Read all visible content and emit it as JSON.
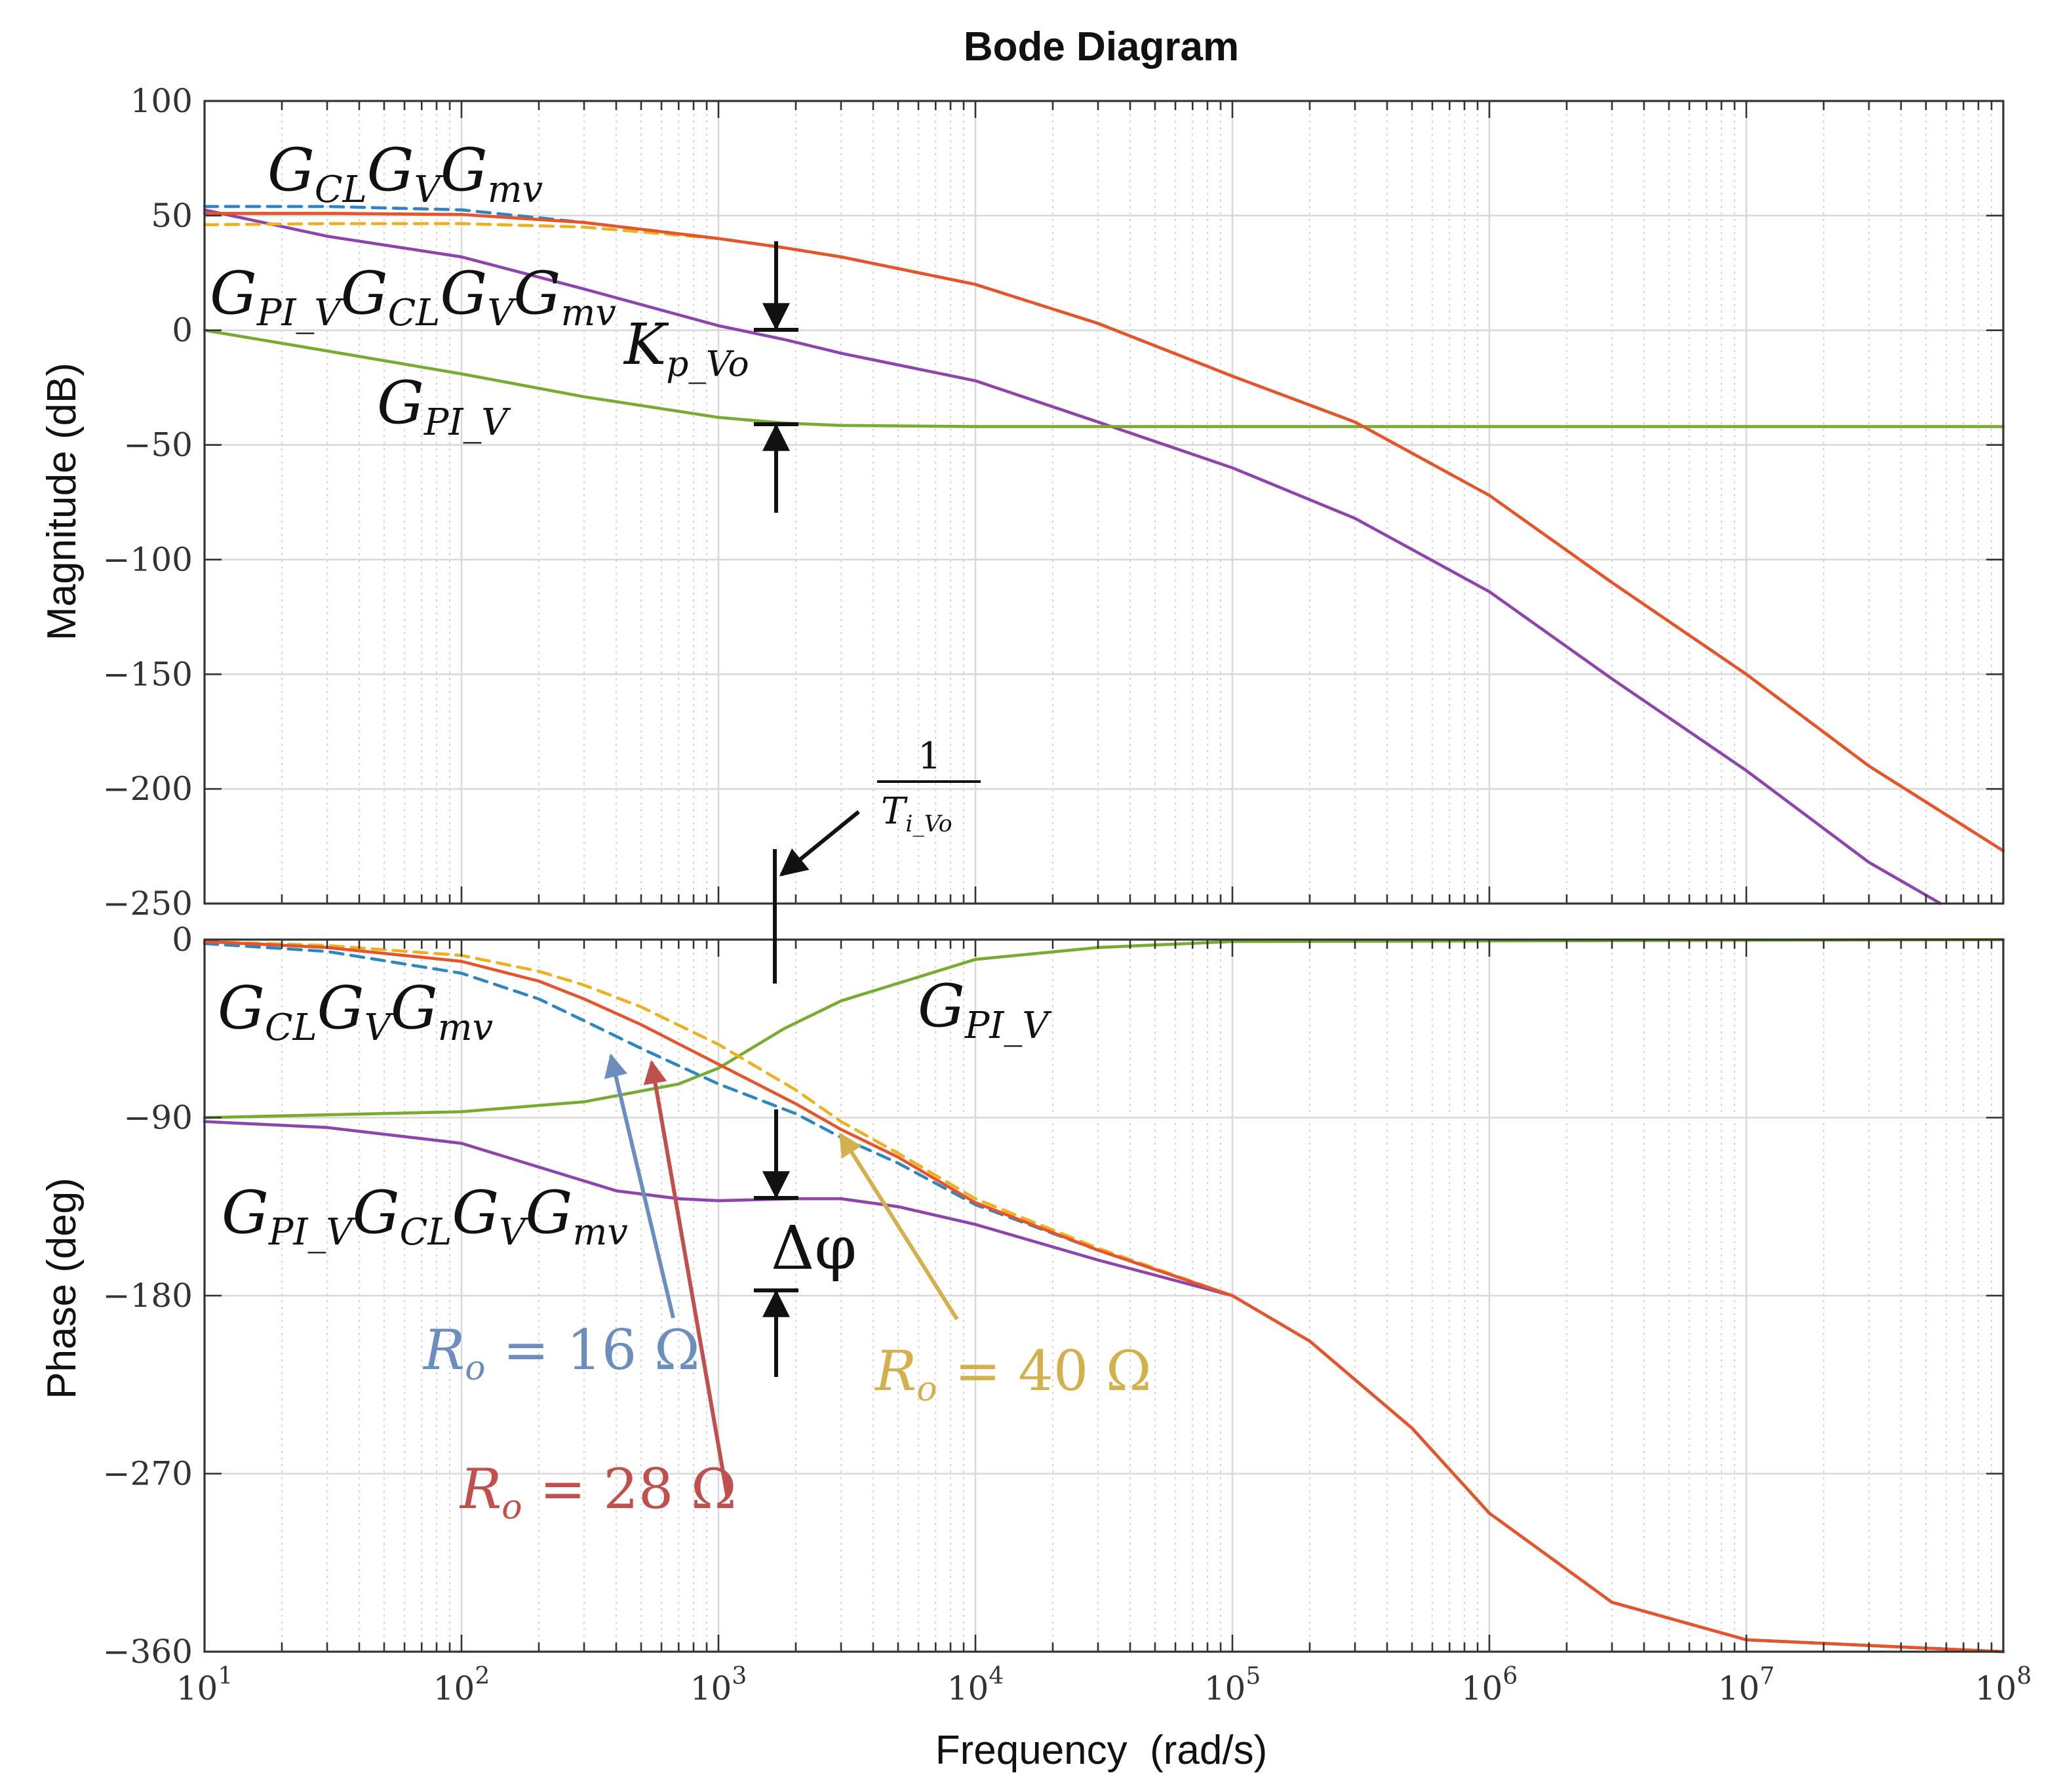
{
  "chart_data": {
    "type": "line",
    "title": "Bode Diagram",
    "xlabel": "Frequency  (rad/s)",
    "x_scale": "log",
    "x_ticks": [
      {
        "value": 10,
        "base": "10",
        "exp": "1"
      },
      {
        "value": 100,
        "base": "10",
        "exp": "2"
      },
      {
        "value": 1000,
        "base": "10",
        "exp": "3"
      },
      {
        "value": 10000,
        "base": "10",
        "exp": "4"
      },
      {
        "value": 100000,
        "base": "10",
        "exp": "5"
      },
      {
        "value": 1000000,
        "base": "10",
        "exp": "6"
      },
      {
        "value": 10000000,
        "base": "10",
        "exp": "7"
      },
      {
        "value": 100000000,
        "base": "10",
        "exp": "8"
      }
    ],
    "xlim": [
      10,
      100000000
    ],
    "colors": {
      "ro16": "#2E86C1",
      "ro28": "#E5542A",
      "ro40": "#EDB120",
      "gpi": "#77AC30",
      "loop": "#8E44AD"
    },
    "annotation_colors": {
      "ro16": "#6C8EBF",
      "ro28": "#C0504D",
      "ro40": "#D4B04C"
    },
    "magnitude": {
      "ylabel": "Magnitude (dB)",
      "ylim": [
        -250,
        100
      ],
      "yticks": [
        {
          "value": 100,
          "label": "100"
        },
        {
          "value": 50,
          "label": "50"
        },
        {
          "value": 0,
          "label": "0"
        },
        {
          "value": -50,
          "label": "−50"
        },
        {
          "value": -100,
          "label": "−100"
        },
        {
          "value": -150,
          "label": "−150"
        },
        {
          "value": -200,
          "label": "−200"
        },
        {
          "value": -250,
          "label": "−250"
        }
      ],
      "series": [
        {
          "name": "G_CL G_V G_mv (Ro = 16 Ω)",
          "color_key": "ro16",
          "dash": true,
          "points": [
            [
              10,
              54
            ],
            [
              30,
              54
            ],
            [
              100,
              52.5
            ],
            [
              300,
              47
            ],
            [
              1000,
              40
            ],
            [
              1800,
              36
            ],
            [
              3000,
              32
            ],
            [
              10000,
              20
            ],
            [
              30000,
              3
            ],
            [
              100000,
              -20
            ],
            [
              300000,
              -40
            ],
            [
              1000000,
              -72
            ],
            [
              3000000,
              -110
            ],
            [
              10000000,
              -150
            ],
            [
              30000000,
              -190
            ],
            [
              100000000,
              -227
            ]
          ]
        },
        {
          "name": "G_CL G_V G_mv (Ro = 28 Ω)",
          "color_key": "ro28",
          "dash": false,
          "points": [
            [
              10,
              51
            ],
            [
              30,
              51
            ],
            [
              100,
              50.5
            ],
            [
              300,
              47
            ],
            [
              1000,
              40
            ],
            [
              1800,
              36
            ],
            [
              3000,
              32
            ],
            [
              10000,
              20
            ],
            [
              30000,
              3
            ],
            [
              100000,
              -20
            ],
            [
              300000,
              -40
            ],
            [
              1000000,
              -72
            ],
            [
              3000000,
              -110
            ],
            [
              10000000,
              -150
            ],
            [
              30000000,
              -190
            ],
            [
              100000000,
              -227
            ]
          ]
        },
        {
          "name": "G_CL G_V G_mv (Ro = 40 Ω)",
          "color_key": "ro40",
          "dash": true,
          "points": [
            [
              10,
              46
            ],
            [
              30,
              46.5
            ],
            [
              100,
              46.5
            ],
            [
              300,
              45
            ],
            [
              1000,
              40
            ],
            [
              1800,
              36
            ],
            [
              3000,
              32
            ],
            [
              10000,
              20
            ],
            [
              30000,
              3
            ],
            [
              100000,
              -20
            ],
            [
              300000,
              -40
            ],
            [
              1000000,
              -72
            ],
            [
              3000000,
              -110
            ],
            [
              10000000,
              -150
            ],
            [
              30000000,
              -190
            ],
            [
              100000000,
              -227
            ]
          ]
        },
        {
          "name": "G_PI_V",
          "color_key": "gpi",
          "dash": false,
          "points": [
            [
              10,
              0
            ],
            [
              30,
              -9
            ],
            [
              100,
              -19
            ],
            [
              300,
              -29
            ],
            [
              1000,
              -38
            ],
            [
              1800,
              -40.5
            ],
            [
              3000,
              -41.5
            ],
            [
              10000,
              -42
            ],
            [
              100000000,
              -42
            ]
          ]
        },
        {
          "name": "G_PI_V G_CL G_V G_mv",
          "color_key": "loop",
          "dash": false,
          "points": [
            [
              10,
              52.5
            ],
            [
              30,
              41
            ],
            [
              100,
              32
            ],
            [
              300,
              18
            ],
            [
              1000,
              2
            ],
            [
              1800,
              -4
            ],
            [
              3000,
              -10
            ],
            [
              10000,
              -22
            ],
            [
              30000,
              -40
            ],
            [
              100000,
              -60
            ],
            [
              300000,
              -82
            ],
            [
              1000000,
              -114
            ],
            [
              3000000,
              -152
            ],
            [
              10000000,
              -192
            ],
            [
              30000000,
              -232
            ],
            [
              57000000,
              -250
            ]
          ]
        }
      ]
    },
    "phase": {
      "ylabel": "Phase (deg)",
      "ylim": [
        -360,
        0
      ],
      "yticks": [
        {
          "value": 0,
          "label": "0"
        },
        {
          "value": -90,
          "label": "−90"
        },
        {
          "value": -180,
          "label": "−180"
        },
        {
          "value": -270,
          "label": "−270"
        },
        {
          "value": -360,
          "label": "−360"
        }
      ],
      "series": [
        {
          "name": "G_CL G_V G_mv (Ro = 16 Ω)",
          "color_key": "ro16",
          "dash": true,
          "points": [
            [
              10,
              -2
            ],
            [
              30,
              -6
            ],
            [
              100,
              -17
            ],
            [
              200,
              -30
            ],
            [
              300,
              -41
            ],
            [
              500,
              -55
            ],
            [
              1000,
              -73
            ],
            [
              2000,
              -88
            ],
            [
              3000,
              -100
            ],
            [
              5000,
              -113
            ],
            [
              10000,
              -134
            ],
            [
              30000,
              -157
            ],
            [
              100000,
              -180
            ],
            [
              200000,
              -203
            ],
            [
              500000,
              -247
            ],
            [
              1000000,
              -290
            ],
            [
              3000000,
              -335
            ],
            [
              10000000,
              -354
            ],
            [
              100000000,
              -360
            ]
          ]
        },
        {
          "name": "G_CL G_V G_mv (Ro = 28 Ω)",
          "color_key": "ro28",
          "dash": false,
          "points": [
            [
              10,
              -1
            ],
            [
              30,
              -4
            ],
            [
              100,
              -11
            ],
            [
              200,
              -21
            ],
            [
              300,
              -30
            ],
            [
              500,
              -43
            ],
            [
              1000,
              -63
            ],
            [
              2000,
              -83
            ],
            [
              3000,
              -96
            ],
            [
              5000,
              -110
            ],
            [
              10000,
              -133
            ],
            [
              30000,
              -157
            ],
            [
              100000,
              -180
            ],
            [
              200000,
              -203
            ],
            [
              500000,
              -247
            ],
            [
              1000000,
              -290
            ],
            [
              3000000,
              -335
            ],
            [
              10000000,
              -354
            ],
            [
              100000000,
              -360
            ]
          ]
        },
        {
          "name": "G_CL G_V G_mv (Ro = 40 Ω)",
          "color_key": "ro40",
          "dash": true,
          "points": [
            [
              10,
              -1
            ],
            [
              30,
              -3
            ],
            [
              100,
              -8
            ],
            [
              200,
              -16
            ],
            [
              300,
              -23
            ],
            [
              500,
              -34
            ],
            [
              1000,
              -53
            ],
            [
              2000,
              -76
            ],
            [
              3000,
              -92
            ],
            [
              5000,
              -108
            ],
            [
              10000,
              -131
            ],
            [
              30000,
              -156
            ],
            [
              100000,
              -180
            ],
            [
              200000,
              -203
            ],
            [
              500000,
              -247
            ],
            [
              1000000,
              -290
            ],
            [
              3000000,
              -335
            ],
            [
              10000000,
              -354
            ],
            [
              100000000,
              -360
            ]
          ]
        },
        {
          "name": "G_PI_V",
          "color_key": "gpi",
          "dash": false,
          "points": [
            [
              10,
              -90
            ],
            [
              100,
              -87
            ],
            [
              300,
              -82
            ],
            [
              700,
              -73
            ],
            [
              1000,
              -65
            ],
            [
              1800,
              -45
            ],
            [
              3000,
              -31
            ],
            [
              10000,
              -10
            ],
            [
              30000,
              -4
            ],
            [
              100000,
              -1
            ],
            [
              100000000,
              0
            ]
          ]
        },
        {
          "name": "G_PI_V G_CL G_V G_mv",
          "color_key": "loop",
          "dash": false,
          "points": [
            [
              10,
              -92
            ],
            [
              30,
              -95
            ],
            [
              100,
              -103
            ],
            [
              200,
              -115
            ],
            [
              400,
              -127
            ],
            [
              700,
              -131
            ],
            [
              1000,
              -132
            ],
            [
              2000,
              -131
            ],
            [
              3000,
              -131
            ],
            [
              5000,
              -135
            ],
            [
              10000,
              -144
            ],
            [
              30000,
              -162
            ],
            [
              100000,
              -180
            ],
            [
              200000,
              -203
            ],
            [
              500000,
              -247
            ],
            [
              1000000,
              -290
            ],
            [
              3000000,
              -335
            ],
            [
              10000000,
              -354
            ],
            [
              100000000,
              -360
            ]
          ]
        }
      ]
    },
    "labels": {
      "mag_gcl": {
        "G1": "G",
        "s1": "CL",
        "G2": "G",
        "s2": "V",
        "G3": "G",
        "s3": "mv"
      },
      "mag_loop": {
        "G0": "G",
        "s0": "PI_V",
        "G1": "G",
        "s1": "CL",
        "G2": "G",
        "s2": "V",
        "G3": "G",
        "s3": "mv"
      },
      "mag_kp": {
        "K": "K",
        "sub": "p_Vo"
      },
      "mag_gpi": {
        "G": "G",
        "sub": "PI_V"
      },
      "ti_num": "1",
      "ti_den": {
        "T": "T",
        "sub": "i_Vo"
      },
      "ph_gcl": {
        "G1": "G",
        "s1": "CL",
        "G2": "G",
        "s2": "V",
        "G3": "G",
        "s3": "mv"
      },
      "ph_gpi": {
        "G": "G",
        "sub": "PI_V"
      },
      "ph_loop": {
        "G0": "G",
        "s0": "PI_V",
        "G1": "G",
        "s1": "CL",
        "G2": "G",
        "s2": "V",
        "G3": "G",
        "s3": "mv"
      },
      "delta_phi": "Δφ",
      "ro16": {
        "R": "R",
        "sub": "o",
        "rest": " = 16 Ω"
      },
      "ro28": {
        "R": "R",
        "sub": "o",
        "rest": " = 28 Ω"
      },
      "ro40": {
        "R": "R",
        "sub": "o",
        "rest": " = 40 Ω"
      }
    }
  }
}
